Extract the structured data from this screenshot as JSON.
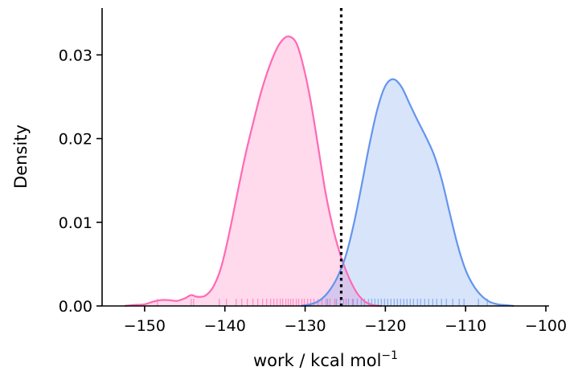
{
  "chart_data": {
    "type": "area",
    "xlabel": "work / kcal mol",
    "xlabel_superscript": "−1",
    "ylabel": "Density",
    "xlim": [
      -155.3,
      -99.6
    ],
    "ylim": [
      0,
      0.0356
    ],
    "x_ticks": [
      -150,
      -140,
      -130,
      -120,
      -110,
      -100
    ],
    "x_tick_labels": [
      "−150",
      "−140",
      "−130",
      "−120",
      "−110",
      "−100"
    ],
    "y_ticks": [
      0.0,
      0.01,
      0.02,
      0.03
    ],
    "y_tick_labels": [
      "0.00",
      "0.01",
      "0.02",
      "0.03"
    ],
    "grid": false,
    "spines": [
      "left",
      "bottom"
    ],
    "vline": {
      "x": -125.5,
      "style": "dotted",
      "color": "#000000"
    },
    "series": [
      {
        "color": "#ff69b4",
        "kde": [
          [
            -152.5,
            0.0
          ],
          [
            -151.5,
            0.0001
          ],
          [
            -150,
            0.0002
          ],
          [
            -149,
            0.0005
          ],
          [
            -148,
            0.0007
          ],
          [
            -147,
            0.0007
          ],
          [
            -146,
            0.0006
          ],
          [
            -145,
            0.0009
          ],
          [
            -144.2,
            0.0013
          ],
          [
            -143.5,
            0.0011
          ],
          [
            -142.5,
            0.0012
          ],
          [
            -141.5,
            0.0022
          ],
          [
            -140.5,
            0.0045
          ],
          [
            -139.5,
            0.0085
          ],
          [
            -138.5,
            0.0132
          ],
          [
            -137.5,
            0.0178
          ],
          [
            -136.5,
            0.0218
          ],
          [
            -135.5,
            0.0255
          ],
          [
            -134.5,
            0.0285
          ],
          [
            -133.5,
            0.0308
          ],
          [
            -132.7,
            0.0319
          ],
          [
            -132,
            0.0322
          ],
          [
            -131.2,
            0.0316
          ],
          [
            -130.5,
            0.0297
          ],
          [
            -129.5,
            0.0255
          ],
          [
            -128.5,
            0.0198
          ],
          [
            -127.5,
            0.0138
          ],
          [
            -126.5,
            0.0092
          ],
          [
            -125.5,
            0.0058
          ],
          [
            -124.5,
            0.0033
          ],
          [
            -123.5,
            0.0015
          ],
          [
            -122.5,
            0.0005
          ],
          [
            -121.5,
            0.0001
          ],
          [
            -120.5,
            0.0
          ]
        ],
        "rug": [
          -148.4,
          -144.2,
          -143.9,
          -140.7,
          -139.8,
          -138.6,
          -137.9,
          -137.2,
          -136.5,
          -135.9,
          -135.3,
          -134.8,
          -134.3,
          -133.9,
          -133.5,
          -133.1,
          -132.8,
          -132.4,
          -132.1,
          -131.8,
          -131.5,
          -131.1,
          -130.8,
          -130.4,
          -130.1,
          -129.7,
          -129.3,
          -128.9,
          -128.4,
          -127.9,
          -127.4,
          -126.9,
          -126.3,
          -125.6,
          -124.9,
          -124.1
        ]
      },
      {
        "color": "#6495ed",
        "kde": [
          [
            -130.5,
            0.0
          ],
          [
            -129,
            0.0003
          ],
          [
            -128,
            0.0008
          ],
          [
            -127,
            0.0018
          ],
          [
            -126,
            0.0034
          ],
          [
            -125,
            0.0058
          ],
          [
            -124,
            0.0095
          ],
          [
            -123,
            0.0142
          ],
          [
            -122,
            0.0192
          ],
          [
            -121,
            0.0235
          ],
          [
            -120,
            0.0263
          ],
          [
            -119,
            0.0271
          ],
          [
            -118,
            0.0262
          ],
          [
            -117,
            0.0242
          ],
          [
            -116,
            0.0222
          ],
          [
            -115,
            0.0203
          ],
          [
            -114,
            0.0182
          ],
          [
            -113,
            0.0152
          ],
          [
            -112,
            0.0112
          ],
          [
            -111,
            0.0073
          ],
          [
            -110,
            0.0043
          ],
          [
            -109,
            0.0024
          ],
          [
            -108,
            0.0012
          ],
          [
            -107,
            0.0005
          ],
          [
            -106,
            0.0002
          ],
          [
            -105,
            0.0001
          ],
          [
            -104,
            0.0
          ]
        ],
        "rug": [
          -127.2,
          -126.1,
          -125.2,
          -124.6,
          -124.0,
          -123.5,
          -123.0,
          -122.6,
          -122.1,
          -121.7,
          -121.3,
          -120.9,
          -120.5,
          -120.1,
          -119.7,
          -119.3,
          -118.9,
          -118.5,
          -118.1,
          -117.7,
          -117.3,
          -116.9,
          -116.5,
          -116.0,
          -115.6,
          -115.1,
          -114.6,
          -114.1,
          -113.6,
          -113.0,
          -112.4,
          -111.6,
          -110.8,
          -110.2,
          -108.4,
          -107.3
        ]
      }
    ]
  }
}
